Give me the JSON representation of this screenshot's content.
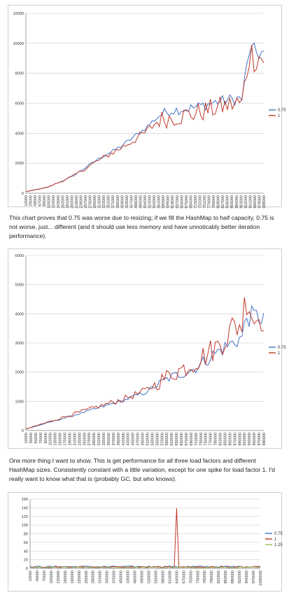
{
  "paragraphs": {
    "p1": "This chart proves that 0.75 was worse due to resizing; if we fill the HashMap to half capacity, 0.75 is not worse, just... different (and it should use less memory and have unnoticably better iteration performance).",
    "p2": "One more thing I want to show. This is get performance for all three load factors and different HashMap sizes. Consistently constant with a little variation, except for one spike for load factor 1. I'd really want to know what that is (probably GC, but who knows)."
  },
  "colors": {
    "lf075": "#4472c4",
    "lf1": "#c0392b",
    "lf125": "#9bbb59",
    "grid": "#c8c8c8",
    "axis": "#888888"
  },
  "chart_data": [
    {
      "type": "line",
      "title": "",
      "xlabel": "",
      "ylabel": "",
      "ylim": [
        0,
        12000
      ],
      "yticks": [
        0,
        2000,
        4000,
        6000,
        8000,
        10000,
        12000
      ],
      "x_range": [
        10000,
        990000
      ],
      "x_step": 10000,
      "xtick_labels": [
        "10000",
        "29000",
        "48000",
        "67000",
        "86000",
        "105000",
        "124000",
        "143000",
        "162000",
        "181000",
        "200000",
        "219000",
        "238000",
        "257000",
        "276000",
        "295000",
        "314000",
        "333000",
        "352000",
        "371000",
        "390000",
        "409000",
        "428000",
        "447000",
        "466000",
        "485000",
        "504000",
        "523000",
        "542000",
        "561000",
        "580000",
        "599000",
        "618000",
        "637000",
        "656000",
        "675000",
        "694000",
        "713000",
        "732000",
        "751000",
        "770000",
        "789000",
        "808000",
        "827000",
        "846000",
        "865000",
        "884000",
        "903000",
        "922000",
        "941000",
        "960000",
        "979000",
        "998000"
      ],
      "grid": true,
      "legend": "right",
      "series": [
        {
          "name": "0.75",
          "color": "#4472c4",
          "points": [
            [
              10000,
              100
            ],
            [
              100000,
              400
            ],
            [
              200000,
              1100
            ],
            [
              300000,
              2200
            ],
            [
              400000,
              3100
            ],
            [
              500000,
              4300
            ],
            [
              560000,
              5200
            ],
            [
              600000,
              5500
            ],
            [
              700000,
              5700
            ],
            [
              800000,
              6100
            ],
            [
              880000,
              6300
            ],
            [
              900000,
              6300
            ],
            [
              930000,
              9500
            ],
            [
              990000,
              9300
            ]
          ]
        },
        {
          "name": "1",
          "color": "#c0392b",
          "points": [
            [
              10000,
              100
            ],
            [
              100000,
              400
            ],
            [
              200000,
              1100
            ],
            [
              300000,
              2100
            ],
            [
              400000,
              3000
            ],
            [
              500000,
              4000
            ],
            [
              560000,
              4900
            ],
            [
              600000,
              5000
            ],
            [
              700000,
              5300
            ],
            [
              800000,
              5700
            ],
            [
              880000,
              6000
            ],
            [
              900000,
              6000
            ],
            [
              930000,
              9300
            ],
            [
              990000,
              9000
            ]
          ]
        }
      ]
    },
    {
      "type": "line",
      "title": "",
      "xlabel": "",
      "ylabel": "",
      "ylim": [
        0,
        6000
      ],
      "yticks": [
        0,
        1000,
        2000,
        3000,
        4000,
        5000,
        6000
      ],
      "x_range": [
        10000,
        990000
      ],
      "x_step": 10000,
      "xtick_labels": [
        "10000",
        "30000",
        "50000",
        "70000",
        "90000",
        "110000",
        "130000",
        "150000",
        "170000",
        "190000",
        "210000",
        "230000",
        "250000",
        "270000",
        "290000",
        "310000",
        "330000",
        "350000",
        "370000",
        "390000",
        "410000",
        "430000",
        "450000",
        "470000",
        "490000",
        "510000",
        "530000",
        "550000",
        "570000",
        "590000",
        "610000",
        "630000",
        "650000",
        "670000",
        "690000",
        "710000",
        "730000",
        "750000",
        "770000",
        "790000",
        "810000",
        "830000",
        "850000",
        "870000",
        "890000",
        "910000",
        "930000",
        "950000",
        "970000",
        "990000"
      ],
      "grid": true,
      "legend": "right",
      "series": [
        {
          "name": "0.75",
          "color": "#4472c4",
          "points": [
            [
              10000,
              50
            ],
            [
              200000,
              500
            ],
            [
              400000,
              1000
            ],
            [
              500000,
              1300
            ],
            [
              600000,
              1800
            ],
            [
              700000,
              2100
            ],
            [
              800000,
              2700
            ],
            [
              860000,
              3000
            ],
            [
              900000,
              3200
            ],
            [
              920000,
              3900
            ],
            [
              990000,
              3900
            ]
          ]
        },
        {
          "name": "1",
          "color": "#c0392b",
          "points": [
            [
              10000,
              50
            ],
            [
              200000,
              550
            ],
            [
              400000,
              1050
            ],
            [
              500000,
              1350
            ],
            [
              600000,
              1900
            ],
            [
              700000,
              2300
            ],
            [
              800000,
              2900
            ],
            [
              860000,
              3500
            ],
            [
              900000,
              3700
            ],
            [
              920000,
              4700
            ],
            [
              950000,
              3800
            ],
            [
              990000,
              4000
            ]
          ]
        }
      ]
    },
    {
      "type": "line",
      "title": "",
      "xlabel": "",
      "ylabel": "",
      "ylim": [
        0,
        160
      ],
      "yticks": [
        0,
        20,
        40,
        60,
        80,
        100,
        120,
        140,
        160
      ],
      "x_range": [
        10000,
        1000000
      ],
      "x_step": 10000,
      "xtick_labels": [
        "10000",
        "40000",
        "70000",
        "100000",
        "130000",
        "160000",
        "190000",
        "220000",
        "250000",
        "280000",
        "310000",
        "340000",
        "370000",
        "400000",
        "430000",
        "460000",
        "490000",
        "520000",
        "550000",
        "580000",
        "610000",
        "640000",
        "670000",
        "700000",
        "730000",
        "760000",
        "790000",
        "820000",
        "850000",
        "880000",
        "910000",
        "940000",
        "970000",
        "1000000"
      ],
      "grid": true,
      "legend": "right",
      "series": [
        {
          "name": "0.75",
          "color": "#4472c4",
          "points": [
            [
              10000,
              4
            ],
            [
              1000000,
              4
            ]
          ]
        },
        {
          "name": "1",
          "color": "#c0392b",
          "points": [
            [
              10000,
              3
            ],
            [
              600000,
              3
            ],
            [
              630000,
              3
            ],
            [
              640000,
              140
            ],
            [
              650000,
              3
            ],
            [
              1000000,
              3
            ]
          ]
        },
        {
          "name": "1.25",
          "color": "#9bbb59",
          "points": [
            [
              10000,
              2
            ],
            [
              1000000,
              2
            ]
          ]
        }
      ]
    }
  ]
}
